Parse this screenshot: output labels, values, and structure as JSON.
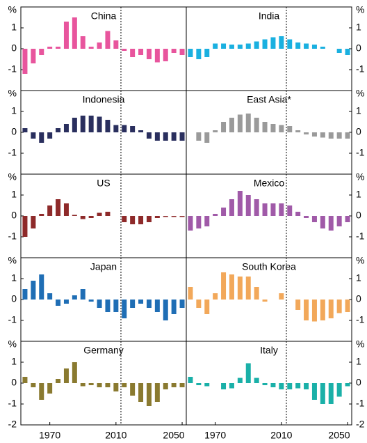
{
  "chart_data": [
    {
      "type": "bar",
      "title": "China",
      "color": "#e8559d",
      "x": [
        1955,
        1960,
        1965,
        1970,
        1975,
        1980,
        1985,
        1990,
        1995,
        2000,
        2005,
        2010,
        2015,
        2020,
        2025,
        2030,
        2035,
        2040,
        2045,
        2050
      ],
      "values": [
        -1.2,
        -0.7,
        -0.3,
        0.1,
        0.1,
        1.3,
        1.5,
        0.6,
        0.1,
        0.3,
        0.85,
        0.4,
        -0.1,
        -0.4,
        -0.3,
        -0.5,
        -0.65,
        -0.6,
        -0.2,
        -0.3
      ],
      "xlim": [
        1952.5,
        2052.5
      ],
      "ylim": [
        -2,
        2
      ],
      "yticks": [
        {
          "value": 2,
          "label": "%"
        },
        1,
        0,
        -1
      ],
      "vline": 2013
    },
    {
      "type": "bar",
      "title": "India",
      "color": "#1ab0e0",
      "x": [
        1955,
        1960,
        1965,
        1970,
        1975,
        1980,
        1985,
        1990,
        1995,
        2000,
        2005,
        2010,
        2015,
        2020,
        2025,
        2030,
        2035,
        2040,
        2045,
        2050
      ],
      "values": [
        -0.4,
        -0.5,
        -0.4,
        0.25,
        0.25,
        0.2,
        0.2,
        0.25,
        0.35,
        0.45,
        0.55,
        0.6,
        0.45,
        0.3,
        0.25,
        0.2,
        0.1,
        0,
        -0.2,
        -0.3
      ],
      "xlim": [
        1952.5,
        2052.5
      ],
      "ylim": [
        -2,
        2
      ],
      "yticks": [
        {
          "value": 2,
          "label": "%"
        },
        1,
        0,
        -1
      ],
      "vline": 2013
    },
    {
      "type": "bar",
      "title": "Indonesia",
      "color": "#2a2f5e",
      "x": [
        1955,
        1960,
        1965,
        1970,
        1975,
        1980,
        1985,
        1990,
        1995,
        2000,
        2005,
        2010,
        2015,
        2020,
        2025,
        2030,
        2035,
        2040,
        2045,
        2050
      ],
      "values": [
        0.2,
        -0.3,
        -0.5,
        -0.3,
        0.2,
        0.4,
        0.7,
        0.8,
        0.8,
        0.75,
        0.6,
        0.35,
        0.35,
        0.3,
        0.1,
        -0.3,
        -0.4,
        -0.4,
        -0.4,
        -0.4
      ],
      "xlim": [
        1952.5,
        2052.5
      ],
      "ylim": [
        -2,
        2
      ],
      "yticks": [
        {
          "value": 2,
          "label": "%"
        },
        1,
        0,
        -1
      ],
      "vline": 2013
    },
    {
      "type": "bar",
      "title": "East Asia*",
      "color": "#9a9a9a",
      "x": [
        1955,
        1960,
        1965,
        1970,
        1975,
        1980,
        1985,
        1990,
        1995,
        2000,
        2005,
        2010,
        2015,
        2020,
        2025,
        2030,
        2035,
        2040,
        2045,
        2050
      ],
      "values": [
        0,
        -0.4,
        -0.5,
        0.1,
        0.5,
        0.7,
        0.85,
        0.9,
        0.7,
        0.5,
        0.4,
        0.35,
        0.3,
        0.1,
        -0.1,
        -0.2,
        -0.25,
        -0.3,
        -0.3,
        -0.3
      ],
      "xlim": [
        1952.5,
        2052.5
      ],
      "ylim": [
        -2,
        2
      ],
      "yticks": [
        {
          "value": 2,
          "label": "%"
        },
        1,
        0,
        -1
      ],
      "vline": 2013
    },
    {
      "type": "bar",
      "title": "US",
      "color": "#8e2a2a",
      "x": [
        1955,
        1960,
        1965,
        1970,
        1975,
        1980,
        1985,
        1990,
        1995,
        2000,
        2005,
        2010,
        2015,
        2020,
        2025,
        2030,
        2035,
        2040,
        2045,
        2050
      ],
      "values": [
        -1,
        -0.6,
        0.1,
        0.5,
        0.8,
        0.6,
        0.05,
        -0.15,
        -0.1,
        0.15,
        0.2,
        0,
        -0.3,
        -0.4,
        -0.4,
        -0.3,
        -0.1,
        -0.05,
        -0.05,
        -0.05
      ],
      "xlim": [
        1952.5,
        2052.5
      ],
      "ylim": [
        -2,
        2
      ],
      "yticks": [
        {
          "value": 2,
          "label": "%"
        },
        1,
        0,
        -1
      ],
      "vline": 2013
    },
    {
      "type": "bar",
      "title": "Mexico",
      "color": "#a05aa8",
      "x": [
        1955,
        1960,
        1965,
        1970,
        1975,
        1980,
        1985,
        1990,
        1995,
        2000,
        2005,
        2010,
        2015,
        2020,
        2025,
        2030,
        2035,
        2040,
        2045,
        2050
      ],
      "values": [
        -0.7,
        -0.6,
        -0.5,
        0.1,
        0.4,
        0.8,
        1.2,
        1.0,
        0.8,
        0.6,
        0.6,
        0.6,
        0.5,
        0.2,
        -0.1,
        -0.3,
        -0.6,
        -0.7,
        -0.5,
        -0.3
      ],
      "xlim": [
        1952.5,
        2052.5
      ],
      "ylim": [
        -2,
        2
      ],
      "yticks": [
        {
          "value": 2,
          "label": "%"
        },
        1,
        0,
        -1
      ],
      "vline": 2013
    },
    {
      "type": "bar",
      "title": "Japan",
      "color": "#1f6eb5",
      "x": [
        1955,
        1960,
        1965,
        1970,
        1975,
        1980,
        1985,
        1990,
        1995,
        2000,
        2005,
        2010,
        2015,
        2020,
        2025,
        2030,
        2035,
        2040,
        2045,
        2050
      ],
      "values": [
        0.5,
        0.9,
        1.2,
        0.3,
        -0.3,
        -0.2,
        0.2,
        0.5,
        -0.1,
        -0.4,
        -0.6,
        -0.6,
        -0.9,
        -0.4,
        -0.2,
        -0.4,
        -0.6,
        -1.0,
        -0.7,
        -0.4
      ],
      "xlim": [
        1952.5,
        2052.5
      ],
      "ylim": [
        -2,
        2
      ],
      "yticks": [
        {
          "value": 2,
          "label": "%"
        },
        1,
        0,
        -1
      ],
      "vline": 2013
    },
    {
      "type": "bar",
      "title": "South Korea",
      "color": "#f2a85a",
      "x": [
        1955,
        1960,
        1965,
        1970,
        1975,
        1980,
        1985,
        1990,
        1995,
        2000,
        2005,
        2010,
        2015,
        2020,
        2025,
        2030,
        2035,
        2040,
        2045,
        2050
      ],
      "values": [
        0.6,
        -0.4,
        -0.7,
        0.3,
        1.3,
        1.2,
        1.1,
        1.1,
        0.6,
        -0.1,
        0,
        0.3,
        0,
        -0.5,
        -1.0,
        -1.05,
        -1.0,
        -0.9,
        -0.65,
        -0.6
      ],
      "xlim": [
        1952.5,
        2052.5
      ],
      "ylim": [
        -2,
        2
      ],
      "yticks": [
        {
          "value": 2,
          "label": "%"
        },
        1,
        0,
        -1
      ],
      "vline": 2013
    },
    {
      "type": "bar",
      "title": "Germany",
      "color": "#8a7a30",
      "x": [
        1955,
        1960,
        1965,
        1970,
        1975,
        1980,
        1985,
        1990,
        1995,
        2000,
        2005,
        2010,
        2015,
        2020,
        2025,
        2030,
        2035,
        2040,
        2045,
        2050
      ],
      "values": [
        0.3,
        -0.2,
        -0.8,
        -0.5,
        0.2,
        0.7,
        1.0,
        -0.15,
        -0.1,
        -0.2,
        -0.2,
        -0.4,
        -0.2,
        -0.6,
        -0.9,
        -1.1,
        -0.9,
        -0.3,
        -0.2,
        -0.2
      ],
      "xlim": [
        1952.5,
        2052.5
      ],
      "xticks": [
        1970,
        2010,
        2050
      ],
      "ylim": [
        -2,
        2
      ],
      "yticks": [
        {
          "value": 2,
          "label": "%"
        },
        1,
        0,
        -1,
        -2
      ],
      "vline": 2013
    },
    {
      "type": "bar",
      "title": "Italy",
      "color": "#1ab0a8",
      "x": [
        1955,
        1960,
        1965,
        1970,
        1975,
        1980,
        1985,
        1990,
        1995,
        2000,
        2005,
        2010,
        2015,
        2020,
        2025,
        2030,
        2035,
        2040,
        2045,
        2050
      ],
      "values": [
        0.3,
        -0.1,
        -0.15,
        0,
        -0.3,
        -0.25,
        0.25,
        0.95,
        0.25,
        -0.1,
        -0.2,
        -0.3,
        -0.3,
        -0.25,
        -0.3,
        -0.8,
        -1.0,
        -1.0,
        -0.65,
        -0.15
      ],
      "xlim": [
        1952.5,
        2052.5
      ],
      "xticks": [
        1970,
        2010,
        2050
      ],
      "ylim": [
        -2,
        2
      ],
      "yticks": [
        {
          "value": 2,
          "label": "%"
        },
        1,
        0,
        -1,
        -2
      ],
      "vline": 2013
    }
  ]
}
